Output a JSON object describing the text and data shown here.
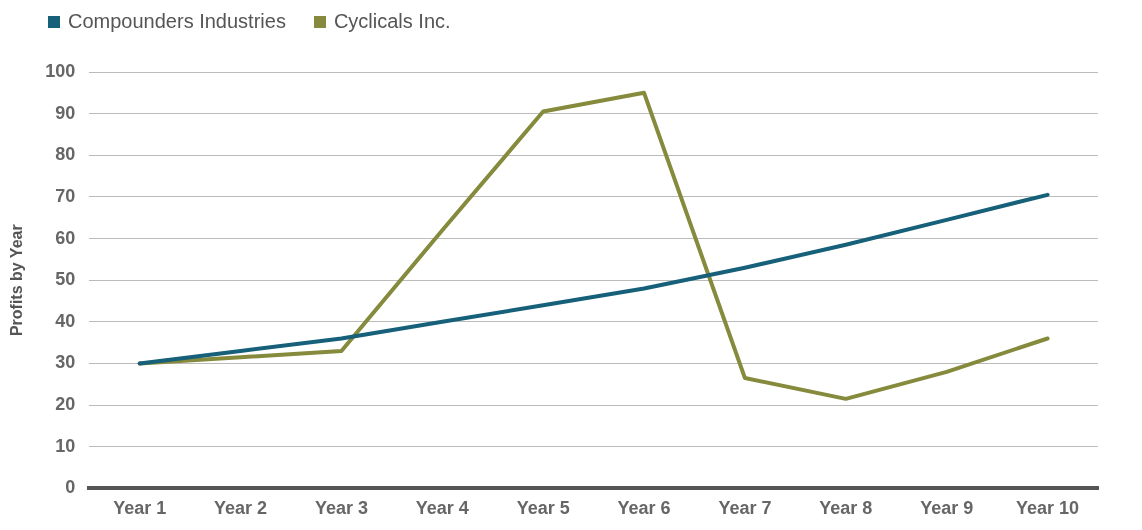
{
  "chart_data": {
    "type": "line",
    "ylabel": "Profits by Year",
    "categories": [
      "Year 1",
      "Year 2",
      "Year 3",
      "Year 4",
      "Year 5",
      "Year 6",
      "Year 7",
      "Year 8",
      "Year 9",
      "Year 10"
    ],
    "series": [
      {
        "name": "Compounders Industries",
        "color": "#17607a",
        "values": [
          30,
          33,
          36,
          40,
          44,
          48,
          53,
          58.5,
          64.5,
          70.5
        ]
      },
      {
        "name": "Cyclicals Inc.",
        "color": "#858a3c",
        "values": [
          30,
          31.5,
          33,
          62,
          90.5,
          95,
          26.5,
          21.5,
          28,
          36
        ]
      }
    ],
    "ylim": [
      0,
      100
    ],
    "yticks": [
      0,
      10,
      20,
      30,
      40,
      50,
      60,
      70,
      80,
      90,
      100
    ],
    "grid": "y",
    "legend": "top left",
    "marker": "none",
    "line_style": "solid"
  }
}
